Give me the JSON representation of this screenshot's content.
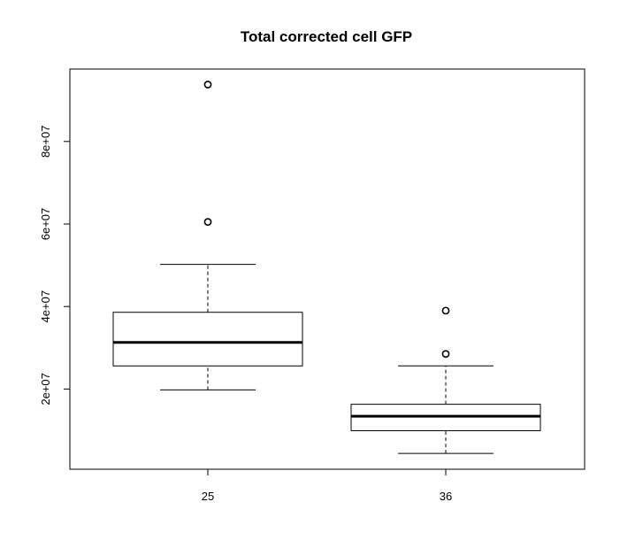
{
  "chart_data": {
    "type": "boxplot",
    "title": "Total corrected cell GFP",
    "xlabel": "",
    "ylabel": "",
    "categories": [
      "25",
      "36"
    ],
    "ylim": [
      0,
      97000000
    ],
    "yticks": [
      20000000,
      40000000,
      60000000,
      80000000
    ],
    "ytick_labels": [
      "2e+07",
      "4e+07",
      "6e+07",
      "8e+07"
    ],
    "boxes": [
      {
        "category": "25",
        "whisker_low": 19800000,
        "q1": 25600000,
        "median": 31300000,
        "q3": 38600000,
        "whisker_high": 50200000,
        "outliers": [
          60500000,
          93800000
        ]
      },
      {
        "category": "36",
        "whisker_low": 4400000,
        "q1": 9900000,
        "median": 13400000,
        "q3": 16300000,
        "whisker_high": 25600000,
        "outliers": [
          28500000,
          39000000
        ]
      }
    ],
    "grid": false,
    "legend": "none",
    "colors": {
      "box_fill": "#ffffff",
      "stroke": "#000000"
    }
  }
}
